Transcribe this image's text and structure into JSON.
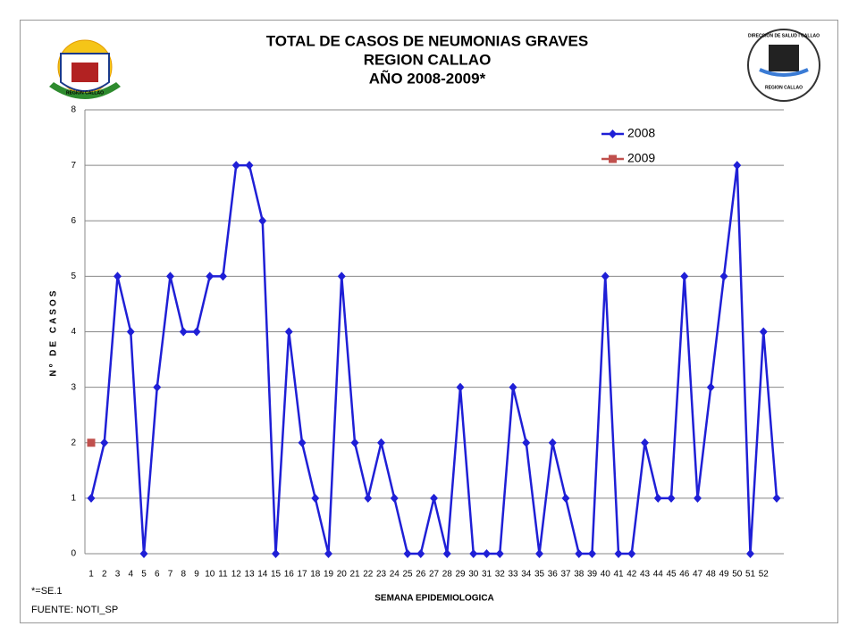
{
  "chart_data": {
    "type": "line",
    "title": [
      "TOTAL DE CASOS DE NEUMONIAS GRAVES",
      "REGION  CALLAO",
      "AÑO 2008-2009*"
    ],
    "y_label": "Nº DE CASOS",
    "x_label": "SEMANA EPIDEMIOLOGICA",
    "footnotes": [
      "*=SE.1",
      "FUENTE: NOTI_SP"
    ],
    "logo_left": "REGION CALLAO",
    "logo_right": [
      "DIRECCION DE SALUD I CALLAO",
      "REGION CALLAO"
    ],
    "categories": [
      1,
      2,
      3,
      4,
      5,
      6,
      7,
      8,
      9,
      10,
      11,
      12,
      13,
      14,
      15,
      16,
      17,
      18,
      19,
      20,
      21,
      22,
      23,
      24,
      25,
      26,
      27,
      28,
      29,
      30,
      31,
      32,
      33,
      34,
      35,
      36,
      37,
      38,
      39,
      40,
      41,
      42,
      43,
      44,
      45,
      46,
      47,
      48,
      49,
      50,
      51,
      52,
      null
    ],
    "series": [
      {
        "name": "2008",
        "color": "#1f1fd6",
        "marker": "diamond",
        "values": [
          1,
          2,
          5,
          4,
          0,
          3,
          5,
          4,
          4,
          5,
          5,
          7,
          7,
          6,
          0,
          4,
          2,
          1,
          0,
          5,
          2,
          1,
          2,
          1,
          0,
          0,
          1,
          0,
          3,
          0,
          0,
          0,
          3,
          2,
          0,
          2,
          1,
          0,
          0,
          5,
          0,
          0,
          2,
          1,
          1,
          5,
          1,
          3,
          5,
          7,
          0,
          4,
          1
        ]
      },
      {
        "name": "2009",
        "color": "#c0504d",
        "marker": "square",
        "values": [
          2,
          null,
          null,
          null,
          null,
          null,
          null,
          null,
          null,
          null,
          null,
          null,
          null,
          null,
          null,
          null,
          null,
          null,
          null,
          null,
          null,
          null,
          null,
          null,
          null,
          null,
          null,
          null,
          null,
          null,
          null,
          null,
          null,
          null,
          null,
          null,
          null,
          null,
          null,
          null,
          null,
          null,
          null,
          null,
          null,
          null,
          null,
          null,
          null,
          null,
          null,
          null,
          null
        ]
      }
    ],
    "ylim": [
      0,
      8
    ],
    "yticks": [
      0,
      1,
      2,
      3,
      4,
      5,
      6,
      7,
      8
    ],
    "grid": true,
    "legend": "top-right"
  }
}
